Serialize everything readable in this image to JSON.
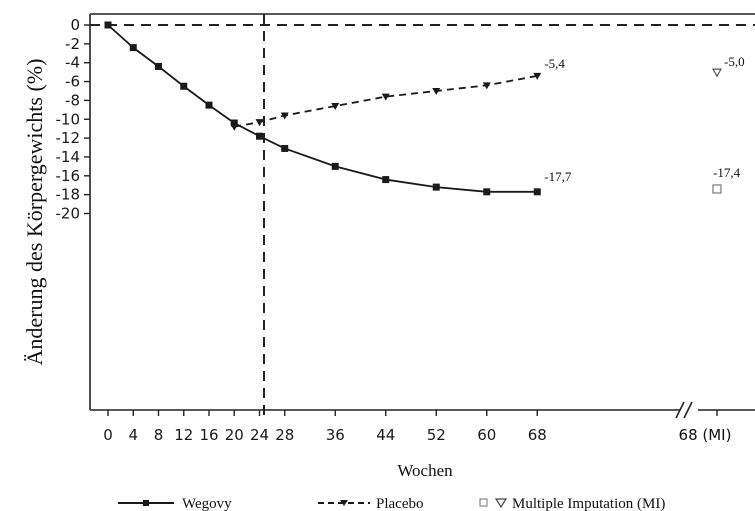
{
  "chart_data": {
    "type": "line",
    "ylabel": "Änderung des Körpergewichts (%)",
    "xlabel": "Wochen",
    "ylim": [
      -20,
      0
    ],
    "yticks": [
      "0",
      "-2",
      "-4",
      "-6",
      "-8",
      "-10",
      "-12",
      "-14",
      "-16",
      "-18",
      "-20"
    ],
    "xticks": [
      "0",
      "4",
      "8",
      "12",
      "16",
      "20",
      "24",
      "28",
      "36",
      "44",
      "52",
      "60",
      "68",
      "68 (MI)"
    ],
    "grid": false,
    "legend_position": "bottom",
    "annotations": {
      "reference_line_x": 20,
      "reference_line_y": 0,
      "axis_break_between": [
        "68",
        "68 (MI)"
      ]
    },
    "series": [
      {
        "name": "Wegovy",
        "style": "solid",
        "marker": "square",
        "color": "#1a1a1a",
        "x": [
          0,
          4,
          8,
          12,
          16,
          20,
          24,
          28,
          36,
          44,
          52,
          60,
          68
        ],
        "values": [
          0,
          -2.4,
          -4.4,
          -6.5,
          -8.5,
          -10.4,
          -11.8,
          -13.1,
          -15.0,
          -16.4,
          -17.2,
          -17.7,
          -17.7
        ],
        "end_label": "-17,7"
      },
      {
        "name": "Placebo",
        "style": "dashed",
        "marker": "triangle-down",
        "color": "#1a1a1a",
        "x": [
          20,
          24,
          28,
          36,
          44,
          52,
          60,
          68
        ],
        "values": [
          -10.8,
          -10.3,
          -9.6,
          -8.6,
          -7.6,
          -7.0,
          -6.4,
          -5.4
        ],
        "end_label": "-5,4"
      }
    ],
    "mi_points": [
      {
        "series": "Wegovy",
        "x_label": "68 (MI)",
        "value": -17.4,
        "marker": "open-square",
        "label": "-17,4"
      },
      {
        "series": "Placebo",
        "x_label": "68 (MI)",
        "value": -5.0,
        "marker": "open-triangle-down",
        "label": "-5,0"
      }
    ],
    "legend": {
      "wegovy": "Wegovy",
      "placebo": "Placebo",
      "mi": "Multiple Imputation (MI)"
    }
  }
}
